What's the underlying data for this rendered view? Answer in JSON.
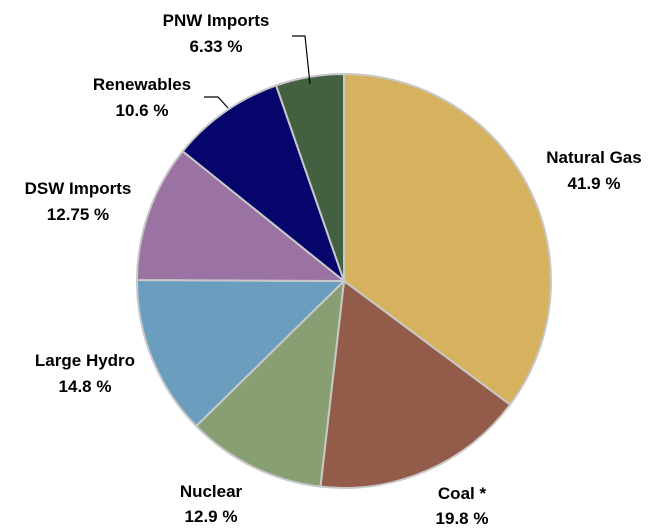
{
  "chart_data": {
    "type": "pie",
    "title": "",
    "slices": [
      {
        "label": "Natural Gas",
        "value_text": "41.9 %",
        "value": 41.9,
        "color": "#D6B25F"
      },
      {
        "label": "Coal *",
        "value_text": "19.8 %",
        "value": 19.8,
        "color": "#935C4A"
      },
      {
        "label": "Nuclear",
        "value_text": "12.9 %",
        "value": 12.9,
        "color": "#879F73"
      },
      {
        "label": "Large Hydro",
        "value_text": "14.8 %",
        "value": 14.8,
        "color": "#6B9DBF"
      },
      {
        "label": "DSW Imports",
        "value_text": "12.75 %",
        "value": 12.75,
        "color": "#9B73A3"
      },
      {
        "label": "Renewables",
        "value_text": "10.6 %",
        "value": 10.6,
        "color": "#05056C"
      },
      {
        "label": "PNW Imports",
        "value_text": "6.33 %",
        "value": 6.33,
        "color": "#436141"
      }
    ],
    "start_angle": "12 o'clock",
    "direction": "clockwise",
    "legend": "none (labels beside slices)"
  }
}
